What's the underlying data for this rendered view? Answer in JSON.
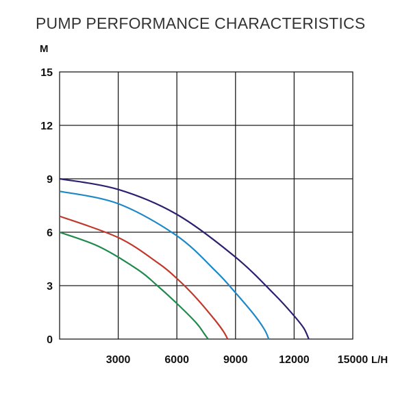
{
  "chart_data": {
    "type": "line",
    "title": "PUMP PERFORMANCE CHARACTERISTICS",
    "ylabel": "M",
    "xlabel": "L/H",
    "xlim": [
      0,
      15000
    ],
    "ylim": [
      0,
      15
    ],
    "x_ticks": [
      3000,
      6000,
      9000,
      12000,
      15000
    ],
    "x_tick_labels": [
      "3000",
      "6000",
      "9000",
      "12000",
      "15000"
    ],
    "y_ticks": [
      0,
      3,
      6,
      9,
      12,
      15
    ],
    "y_tick_labels": [
      "0",
      "3",
      "6",
      "9",
      "12",
      "15"
    ],
    "grid": true,
    "series": [
      {
        "color": "#2e1f6e",
        "x": [
          0,
          3000,
          6000,
          9000,
          11000,
          12000,
          12500,
          12750
        ],
        "y": [
          9.0,
          8.4,
          7.0,
          4.6,
          2.5,
          1.3,
          0.6,
          0
        ]
      },
      {
        "color": "#1e88c7",
        "x": [
          0,
          3000,
          6000,
          8000,
          9000,
          10000,
          10500,
          10700
        ],
        "y": [
          8.3,
          7.6,
          5.8,
          3.8,
          2.6,
          1.3,
          0.5,
          0
        ]
      },
      {
        "color": "#c0392b",
        "x": [
          0,
          3000,
          5000,
          6000,
          7000,
          8000,
          8400,
          8600
        ],
        "y": [
          6.9,
          5.7,
          4.3,
          3.4,
          2.3,
          1.0,
          0.4,
          0
        ]
      },
      {
        "color": "#1f8a4c",
        "x": [
          0,
          2000,
          4000,
          5000,
          6000,
          7000,
          7400,
          7600
        ],
        "y": [
          6.0,
          5.2,
          3.9,
          3.0,
          2.0,
          0.9,
          0.3,
          0
        ]
      }
    ]
  }
}
